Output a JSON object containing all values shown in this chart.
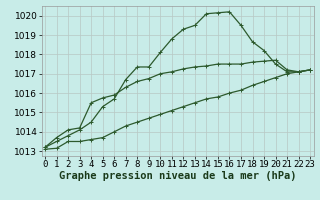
{
  "xlabel": "Graphe pression niveau de la mer (hPa)",
  "background_color": "#c8ece8",
  "grid_color": "#b8c8c4",
  "line_color": "#2d5a2d",
  "x_ticks": [
    0,
    1,
    2,
    3,
    4,
    5,
    6,
    7,
    8,
    9,
    10,
    11,
    12,
    13,
    14,
    15,
    16,
    17,
    18,
    19,
    20,
    21,
    22,
    23
  ],
  "ylim": [
    1012.75,
    1020.5
  ],
  "xlim": [
    -0.3,
    23.3
  ],
  "yticks": [
    1013,
    1014,
    1015,
    1016,
    1017,
    1018,
    1019,
    1020
  ],
  "line1": [
    1013.2,
    1013.5,
    1013.8,
    1014.1,
    1014.5,
    1015.3,
    1015.7,
    1016.7,
    1017.35,
    1017.35,
    1018.1,
    1018.8,
    1019.3,
    1019.5,
    1020.1,
    1020.15,
    1020.2,
    1019.5,
    1018.65,
    1018.2,
    1017.5,
    1017.1,
    1017.1,
    1017.2
  ],
  "line2": [
    1013.2,
    1013.7,
    1014.1,
    1014.2,
    1015.5,
    1015.75,
    1015.9,
    1016.3,
    1016.6,
    1016.75,
    1017.0,
    1017.1,
    1017.25,
    1017.35,
    1017.4,
    1017.5,
    1017.5,
    1017.5,
    1017.6,
    1017.65,
    1017.7,
    1017.2,
    1017.1,
    1017.2
  ],
  "line3": [
    1013.1,
    1013.15,
    1013.5,
    1013.5,
    1013.6,
    1013.7,
    1014.0,
    1014.3,
    1014.5,
    1014.7,
    1014.9,
    1015.1,
    1015.3,
    1015.5,
    1015.7,
    1015.8,
    1016.0,
    1016.15,
    1016.4,
    1016.6,
    1016.8,
    1017.0,
    1017.1,
    1017.2
  ],
  "marker": "+",
  "marker_size": 3.5,
  "line_width": 0.9,
  "tick_fontsize": 6.5,
  "label_fontsize": 7.5
}
